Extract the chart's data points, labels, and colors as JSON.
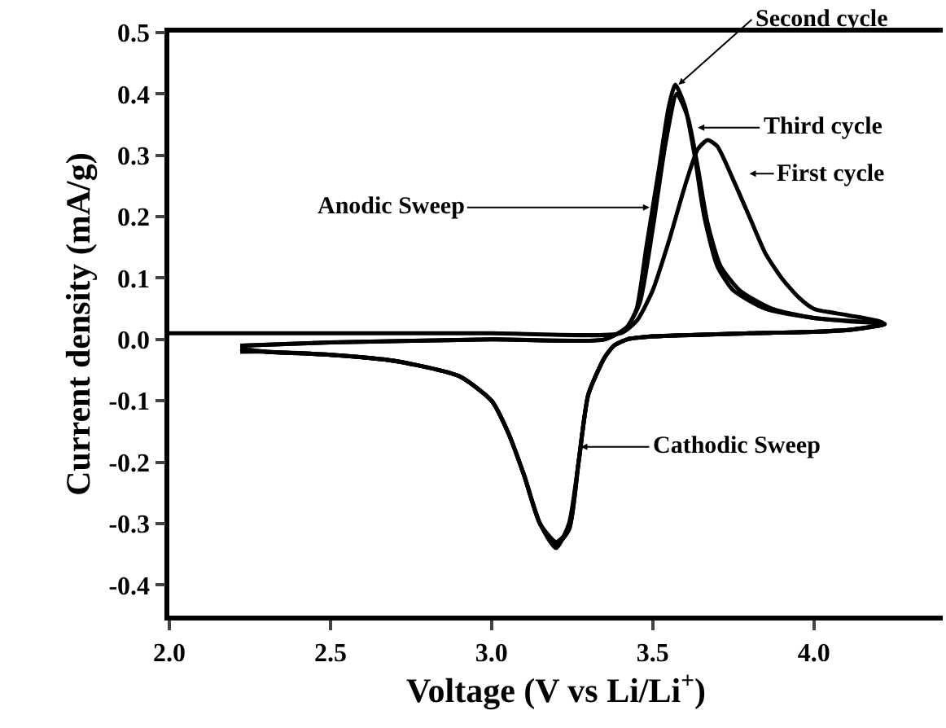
{
  "chart_data": {
    "type": "line",
    "xlabel": "Voltage (V vs Li/Li$^{+}$)",
    "ylabel": "Current density (mA/g)",
    "xlim": [
      2.0,
      4.4
    ],
    "ylim": [
      -0.45,
      0.5
    ],
    "xticks": [
      {
        "value": 2.0,
        "label": "2.0"
      },
      {
        "value": 2.5,
        "label": "2.5"
      },
      {
        "value": 3.0,
        "label": "3.0"
      },
      {
        "value": 3.5,
        "label": "3.5"
      },
      {
        "value": 4.0,
        "label": "4.0"
      }
    ],
    "yticks": [
      {
        "value": -0.4,
        "label": "-0.4"
      },
      {
        "value": -0.3,
        "label": "-0.3"
      },
      {
        "value": -0.2,
        "label": "-0.2"
      },
      {
        "value": -0.1,
        "label": "-0.1"
      },
      {
        "value": 0,
        "label": "0.0"
      },
      {
        "value": 0.1,
        "label": "0.1"
      },
      {
        "value": 0.2,
        "label": "0.2"
      },
      {
        "value": 0.3,
        "label": "0.3"
      },
      {
        "value": 0.4,
        "label": "0.4"
      },
      {
        "value": 0.5,
        "label": "0.5"
      }
    ],
    "marker": "none",
    "line_style": "solid",
    "series": [
      {
        "color": "#000000",
        "x": [
          2.0,
          2.5,
          3.0,
          3.4,
          3.45,
          3.5,
          3.55,
          3.6,
          3.64,
          3.67,
          3.7,
          3.75,
          3.8,
          3.85,
          3.9,
          3.95,
          4.0,
          4.1,
          4.2,
          4.22,
          4.1,
          3.8,
          3.5,
          3.42,
          3.38,
          3.35,
          3.3,
          3.27,
          3.24,
          3.2,
          3.15,
          3.1,
          3.05,
          3.0,
          2.9,
          2.7,
          2.5,
          2.3,
          2.22
        ],
        "values": [
          0.01,
          0.01,
          0.01,
          0.01,
          0.03,
          0.08,
          0.16,
          0.25,
          0.31,
          0.325,
          0.315,
          0.26,
          0.2,
          0.14,
          0.1,
          0.07,
          0.05,
          0.04,
          0.03,
          0.025,
          0.015,
          0.01,
          0.005,
          0.0,
          -0.01,
          -0.03,
          -0.09,
          -0.2,
          -0.3,
          -0.34,
          -0.3,
          -0.22,
          -0.15,
          -0.1,
          -0.06,
          -0.035,
          -0.025,
          -0.02,
          -0.02
        ]
      },
      {
        "color": "#000000",
        "x": [
          2.22,
          2.5,
          3.0,
          3.35,
          3.42,
          3.45,
          3.48,
          3.52,
          3.55,
          3.57,
          3.6,
          3.63,
          3.66,
          3.7,
          3.75,
          3.85,
          4.0,
          4.1,
          4.22,
          4.1,
          3.8,
          3.5,
          3.42,
          3.38,
          3.35,
          3.3,
          3.27,
          3.24,
          3.2,
          3.15,
          3.1,
          3.05,
          3.0,
          2.9,
          2.7,
          2.5,
          2.3,
          2.22
        ],
        "values": [
          -0.01,
          -0.005,
          0.0,
          0.0,
          0.02,
          0.05,
          0.15,
          0.28,
          0.38,
          0.415,
          0.38,
          0.3,
          0.2,
          0.12,
          0.08,
          0.05,
          0.035,
          0.03,
          0.025,
          0.015,
          0.01,
          0.005,
          0.0,
          -0.01,
          -0.03,
          -0.09,
          -0.2,
          -0.31,
          -0.335,
          -0.3,
          -0.22,
          -0.15,
          -0.1,
          -0.06,
          -0.035,
          -0.025,
          -0.02,
          -0.015
        ]
      },
      {
        "color": "#000000",
        "x": [
          2.22,
          2.5,
          3.0,
          3.35,
          3.42,
          3.46,
          3.5,
          3.54,
          3.575,
          3.61,
          3.64,
          3.67,
          3.71,
          3.77,
          3.87,
          4.0,
          4.22,
          4.1,
          3.8,
          3.5,
          3.42,
          3.38,
          3.35,
          3.3,
          3.27,
          3.24,
          3.2,
          3.15,
          3.1,
          3.05,
          3.0,
          2.9,
          2.7,
          2.5,
          2.3,
          2.22
        ],
        "values": [
          -0.01,
          -0.005,
          0.0,
          0.0,
          0.02,
          0.06,
          0.18,
          0.32,
          0.4,
          0.36,
          0.28,
          0.19,
          0.12,
          0.08,
          0.05,
          0.035,
          0.025,
          0.015,
          0.01,
          0.005,
          0.0,
          -0.01,
          -0.03,
          -0.09,
          -0.2,
          -0.31,
          -0.33,
          -0.3,
          -0.22,
          -0.15,
          -0.1,
          -0.06,
          -0.035,
          -0.025,
          -0.02,
          -0.015
        ]
      }
    ],
    "annotations": [
      {
        "text": "Second cycle",
        "x": 3.58,
        "y": 0.415
      },
      {
        "text": "Third cycle",
        "x": 3.64,
        "y": 0.345
      },
      {
        "text": "First cycle",
        "x": 3.8,
        "y": 0.27
      },
      {
        "text": "Anodic Sweep",
        "x": 3.49,
        "y": 0.215
      },
      {
        "text": "Cathodic Sweep",
        "x": 3.277,
        "y": -0.175
      }
    ]
  }
}
